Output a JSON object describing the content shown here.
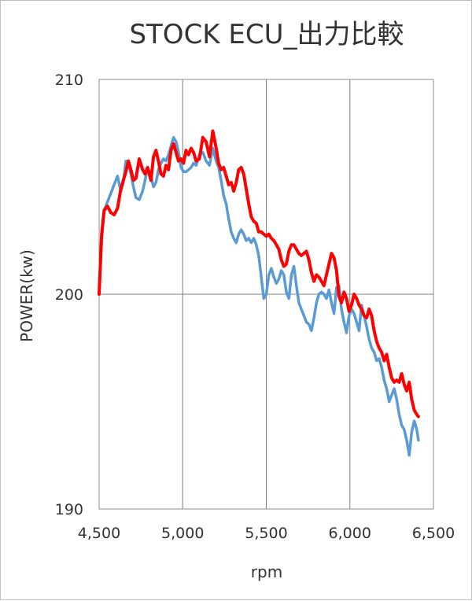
{
  "chart_data": {
    "type": "line",
    "title": "STOCK ECU_出力比較",
    "xlabel": "rpm",
    "ylabel": "POWER(kw)",
    "xlim": [
      4500,
      6500
    ],
    "ylim": [
      190,
      210
    ],
    "x_ticks": [
      4500,
      5000,
      5500,
      6000,
      6500
    ],
    "x_tick_labels": [
      "4,500",
      "5,000",
      "5,500",
      "6,000",
      "6,500"
    ],
    "y_ticks": [
      190,
      200,
      210
    ],
    "y_tick_labels": [
      "190",
      "200",
      "210"
    ],
    "grid": true,
    "legend": "none",
    "series": [
      {
        "color": "#5b9bd5",
        "x": [
          4500,
          4515,
          4530,
          4550,
          4570,
          4590,
          4610,
          4630,
          4645,
          4660,
          4675,
          4690,
          4705,
          4720,
          4740,
          4760,
          4775,
          4790,
          4810,
          4825,
          4840,
          4855,
          4870,
          4885,
          4900,
          4915,
          4930,
          4945,
          4960,
          4975,
          4990,
          5005,
          5020,
          5035,
          5050,
          5065,
          5080,
          5100,
          5120,
          5140,
          5160,
          5180,
          5200,
          5215,
          5230,
          5245,
          5260,
          5275,
          5290,
          5305,
          5320,
          5335,
          5350,
          5365,
          5380,
          5395,
          5410,
          5425,
          5440,
          5455,
          5470,
          5485,
          5500,
          5515,
          5530,
          5545,
          5560,
          5575,
          5590,
          5605,
          5620,
          5635,
          5650,
          5665,
          5680,
          5695,
          5710,
          5725,
          5740,
          5755,
          5770,
          5785,
          5800,
          5815,
          5830,
          5845,
          5860,
          5875,
          5890,
          5905,
          5920,
          5935,
          5950,
          5965,
          5980,
          5995,
          6010,
          6025,
          6040,
          6055,
          6070,
          6085,
          6100,
          6115,
          6130,
          6145,
          6160,
          6175,
          6190,
          6205,
          6220,
          6235,
          6250,
          6265,
          6280,
          6295,
          6310,
          6325,
          6340,
          6355,
          6370,
          6385,
          6400,
          6410
        ],
        "values": [
          200.0,
          202.5,
          203.9,
          204.3,
          204.7,
          205.1,
          205.5,
          204.8,
          205.2,
          206.2,
          206.1,
          205.6,
          205.0,
          204.5,
          204.4,
          204.8,
          205.3,
          205.9,
          205.5,
          205.0,
          205.2,
          205.8,
          206.1,
          206.3,
          206.2,
          206.5,
          206.9,
          207.3,
          207.1,
          206.6,
          205.9,
          205.7,
          205.7,
          205.8,
          205.9,
          206.1,
          206.0,
          206.5,
          206.6,
          206.2,
          206.0,
          206.8,
          206.2,
          205.9,
          205.3,
          204.6,
          204.2,
          203.5,
          202.9,
          202.6,
          202.4,
          202.8,
          203.0,
          202.8,
          202.5,
          202.6,
          202.4,
          202.6,
          202.3,
          201.8,
          200.8,
          199.8,
          200.0,
          200.9,
          201.2,
          200.8,
          200.5,
          200.7,
          201.1,
          200.9,
          200.1,
          199.8,
          200.9,
          201.3,
          200.4,
          199.6,
          199.3,
          199.0,
          198.7,
          198.6,
          198.3,
          198.9,
          199.6,
          200.0,
          200.1,
          200.0,
          199.8,
          200.2,
          199.6,
          199.1,
          200.3,
          200.4,
          199.3,
          198.7,
          198.2,
          199.0,
          199.3,
          199.1,
          198.7,
          198.3,
          199.5,
          199.0,
          198.5,
          197.9,
          197.5,
          197.3,
          196.9,
          197.0,
          196.6,
          196.0,
          195.6,
          195.0,
          195.3,
          195.6,
          195.1,
          194.4,
          193.9,
          193.7,
          193.2,
          192.5,
          193.6,
          194.1,
          193.7,
          193.2
        ],
        "note_unused": ""
      },
      {
        "color": "#ff0000",
        "x": [
          4500,
          4515,
          4530,
          4550,
          4570,
          4590,
          4610,
          4630,
          4645,
          4660,
          4675,
          4690,
          4705,
          4720,
          4740,
          4760,
          4775,
          4790,
          4810,
          4825,
          4840,
          4855,
          4870,
          4885,
          4900,
          4915,
          4930,
          4945,
          4960,
          4975,
          4990,
          5005,
          5020,
          5035,
          5050,
          5065,
          5080,
          5100,
          5120,
          5140,
          5160,
          5180,
          5200,
          5215,
          5230,
          5245,
          5260,
          5275,
          5290,
          5305,
          5320,
          5335,
          5350,
          5365,
          5380,
          5395,
          5410,
          5425,
          5440,
          5455,
          5470,
          5485,
          5500,
          5515,
          5530,
          5545,
          5560,
          5575,
          5590,
          5605,
          5620,
          5635,
          5650,
          5665,
          5680,
          5695,
          5710,
          5725,
          5740,
          5755,
          5770,
          5785,
          5800,
          5815,
          5830,
          5845,
          5860,
          5875,
          5890,
          5905,
          5920,
          5935,
          5950,
          5965,
          5980,
          5995,
          6010,
          6025,
          6040,
          6055,
          6070,
          6085,
          6100,
          6115,
          6130,
          6145,
          6160,
          6175,
          6190,
          6205,
          6220,
          6235,
          6250,
          6265,
          6280,
          6295,
          6310,
          6325,
          6340,
          6355,
          6370,
          6385,
          6400,
          6410
        ],
        "values": [
          200.0,
          202.8,
          203.9,
          204.1,
          203.8,
          203.7,
          204.0,
          204.9,
          205.3,
          205.7,
          206.2,
          205.8,
          205.3,
          205.4,
          206.3,
          205.8,
          205.6,
          205.9,
          205.3,
          206.4,
          206.7,
          206.2,
          205.6,
          205.5,
          206.0,
          205.8,
          206.7,
          207.0,
          206.6,
          206.2,
          206.3,
          206.1,
          206.7,
          206.5,
          206.8,
          206.6,
          206.2,
          206.3,
          207.3,
          207.1,
          206.4,
          207.6,
          206.8,
          206.1,
          205.8,
          205.9,
          205.5,
          205.1,
          205.2,
          204.8,
          205.2,
          205.8,
          205.9,
          205.6,
          204.9,
          204.2,
          203.6,
          203.4,
          203.3,
          202.9,
          202.9,
          202.8,
          202.7,
          202.8,
          202.6,
          202.5,
          202.3,
          202.1,
          201.6,
          201.3,
          201.4,
          202.0,
          202.3,
          202.3,
          202.1,
          201.9,
          201.8,
          201.9,
          202.0,
          201.6,
          201.0,
          200.6,
          200.9,
          200.8,
          200.6,
          200.4,
          200.9,
          201.4,
          201.9,
          201.7,
          201.1,
          199.9,
          199.6,
          200.1,
          199.8,
          199.2,
          199.5,
          200.0,
          199.8,
          199.5,
          199.3,
          199.0,
          198.9,
          199.3,
          199.0,
          198.3,
          197.8,
          197.5,
          197.3,
          196.9,
          197.2,
          196.6,
          196.1,
          195.9,
          196.0,
          195.9,
          196.3,
          195.8,
          195.5,
          195.9,
          195.1,
          194.6,
          194.4,
          194.3
        ],
        "note_unused": ""
      }
    ]
  }
}
